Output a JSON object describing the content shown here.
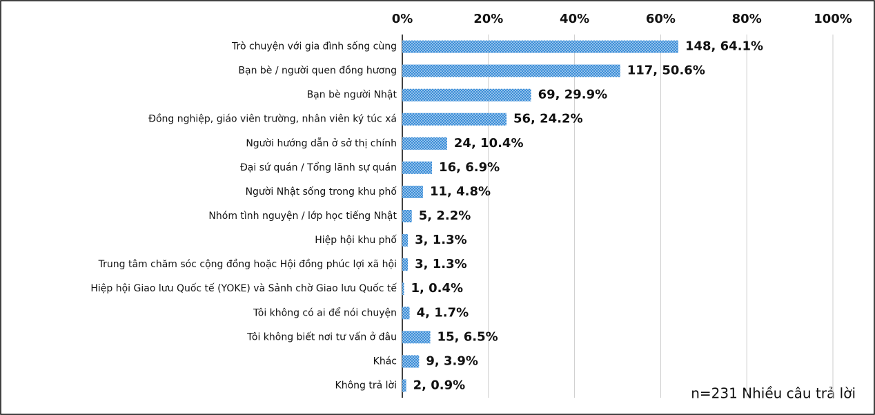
{
  "chart_data": {
    "type": "bar",
    "orientation": "horizontal",
    "categories": [
      "Trò chuyện với gia đình sống cùng",
      "Bạn bè / người quen đồng hương",
      "Bạn bè người Nhật",
      "Đồng nghiệp, giáo viên trường, nhân viên ký túc xá",
      "Người hướng dẫn ở sở thị chính",
      "Đại sứ quán / Tổng lãnh sự quán",
      "Người Nhật sống trong khu phố",
      "Nhóm tình nguyện / lớp học tiếng Nhật",
      "Hiệp hội khu phố",
      "Trung tâm chăm sóc cộng đồng hoặc Hội đồng phúc lợi xã hội",
      "Hiệp hội Giao lưu Quốc tế (YOKE) và Sảnh chờ Giao lưu Quốc tế",
      "Tôi không có ai để nói chuyện",
      "Tôi không biết nơi tư vấn ở đâu",
      "Khác",
      "Không trả lời"
    ],
    "values": [
      64.1,
      50.6,
      29.9,
      24.2,
      10.4,
      6.9,
      4.8,
      2.2,
      1.3,
      1.3,
      0.4,
      1.7,
      6.5,
      3.9,
      0.9
    ],
    "value_labels": [
      "148, 64.1%",
      "117, 50.6%",
      "69, 29.9%",
      "56, 24.2%",
      "24, 10.4%",
      "16, 6.9%",
      "11, 4.8%",
      "5, 2.2%",
      "3, 1.3%",
      "3, 1.3%",
      "1, 0.4%",
      "4, 1.7%",
      "15, 6.5%",
      "9, 3.9%",
      "2, 0.9%"
    ],
    "color": "#3a8dd8",
    "xlim": [
      0,
      100
    ],
    "xticks": [
      {
        "value": 0,
        "label": "0%"
      },
      {
        "value": 20,
        "label": "20%"
      },
      {
        "value": 40,
        "label": "40%"
      },
      {
        "value": 60,
        "label": "60%"
      },
      {
        "value": 80,
        "label": "80%"
      },
      {
        "value": 100,
        "label": "100%"
      }
    ],
    "grid": true,
    "annotation": "n=231 Nhiều câu trả lời"
  }
}
